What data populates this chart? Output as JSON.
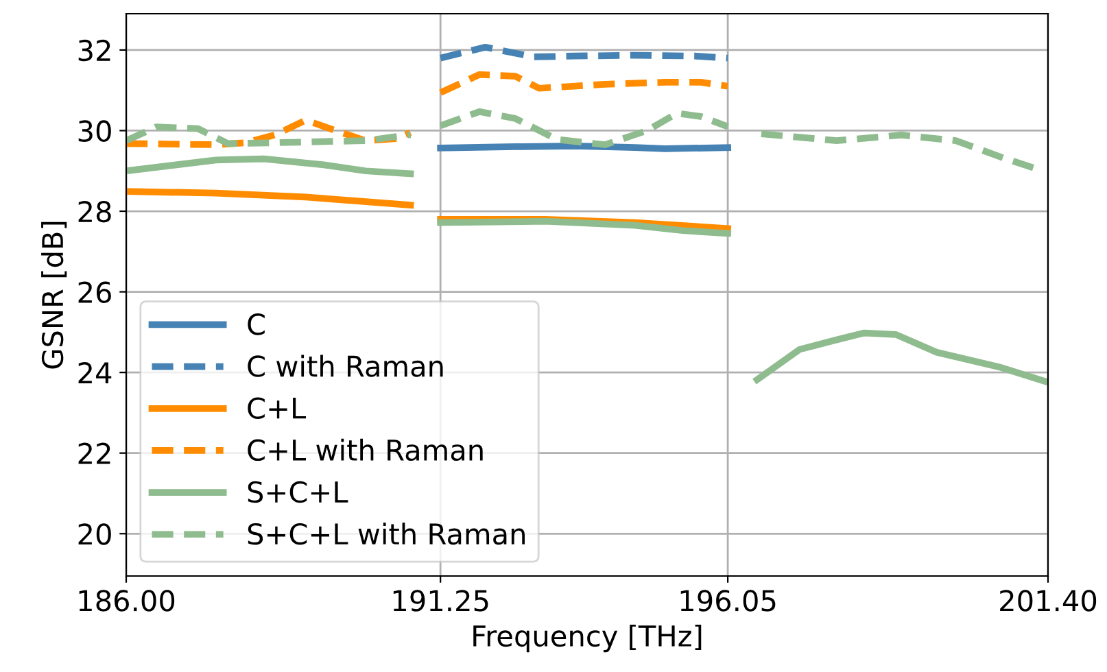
{
  "chart_data": {
    "type": "line",
    "xlabel": "Frequency [THz]",
    "ylabel": "GSNR [dB]",
    "xlim": [
      186.0,
      201.4
    ],
    "xticks": [
      {
        "value": 186.0,
        "label": "186.00"
      },
      {
        "value": 191.25,
        "label": "191.25"
      },
      {
        "value": 196.05,
        "label": "196.05"
      },
      {
        "value": 201.4,
        "label": "201.40"
      }
    ],
    "ylim": [
      18.95,
      32.9
    ],
    "yticks": [
      20,
      22,
      24,
      26,
      28,
      30,
      32
    ],
    "grid": true,
    "legend": "bottom left",
    "series": [
      {
        "name": "C",
        "color": "#4682b4",
        "line_style": "solid",
        "x": [
          191.25,
          192.5,
          193.5,
          194.5,
          195.0,
          196.05
        ],
        "values": [
          29.57,
          29.6,
          29.62,
          29.58,
          29.55,
          29.58
        ]
      },
      {
        "name": "C with Raman",
        "color": "#4682b4",
        "line_style": "dashed",
        "x": [
          191.25,
          192.0,
          192.8,
          193.5,
          194.5,
          195.5,
          196.05
        ],
        "values": [
          31.8,
          32.07,
          31.83,
          31.85,
          31.87,
          31.85,
          31.8
        ]
      },
      {
        "name": "C+L",
        "color": "#ff8c00",
        "line_style": "solid",
        "x": [
          186.0,
          187.5,
          189.0,
          190.75,
          191.0,
          191.25,
          193.0,
          194.5,
          196.05
        ],
        "values": [
          28.49,
          28.45,
          28.35,
          28.15,
          null,
          27.8,
          27.8,
          27.72,
          27.57
        ]
      },
      {
        "name": "C+L with Raman",
        "color": "#ff8c00",
        "line_style": "dashed",
        "x": [
          186.0,
          187.5,
          188.0,
          188.5,
          189.0,
          189.5,
          190.0,
          190.5,
          190.75,
          191.0,
          191.25,
          191.9,
          192.5,
          192.9,
          194.0,
          195.0,
          195.6,
          196.05
        ],
        "values": [
          29.68,
          29.65,
          29.7,
          29.9,
          30.26,
          30.0,
          29.75,
          29.8,
          29.95,
          null,
          30.94,
          31.39,
          31.35,
          31.05,
          31.15,
          31.2,
          31.2,
          31.1
        ]
      },
      {
        "name": "S+C+L",
        "color": "#8fbc8f",
        "line_style": "solid",
        "x": [
          186.0,
          187.5,
          188.3,
          189.3,
          190.0,
          190.75,
          191.0,
          191.25,
          193.0,
          194.5,
          195.3,
          196.05,
          196.3,
          196.54,
          197.25,
          197.87,
          198.33,
          198.86,
          199.54,
          200.62,
          201.35
        ],
        "values": [
          29.0,
          29.27,
          29.3,
          29.15,
          29.0,
          28.93,
          null,
          27.72,
          27.75,
          27.65,
          27.52,
          27.45,
          null,
          23.82,
          24.57,
          24.81,
          24.98,
          24.94,
          24.5,
          24.12,
          23.78
        ]
      },
      {
        "name": "S+C+L with Raman",
        "color": "#8fbc8f",
        "line_style": "dashed",
        "x": [
          186.0,
          186.5,
          187.2,
          187.7,
          188.5,
          190.0,
          190.75,
          191.0,
          191.25,
          191.9,
          192.5,
          193.2,
          194.0,
          194.7,
          195.2,
          195.6,
          196.05,
          196.3,
          196.61,
          197.87,
          198.95,
          199.86,
          200.62,
          201.31
        ],
        "values": [
          29.75,
          30.09,
          30.05,
          29.68,
          29.7,
          29.75,
          29.9,
          null,
          30.12,
          30.47,
          30.3,
          29.78,
          29.65,
          30.0,
          30.43,
          30.35,
          30.1,
          null,
          29.92,
          29.75,
          29.89,
          29.75,
          29.34,
          29.0
        ]
      }
    ]
  }
}
